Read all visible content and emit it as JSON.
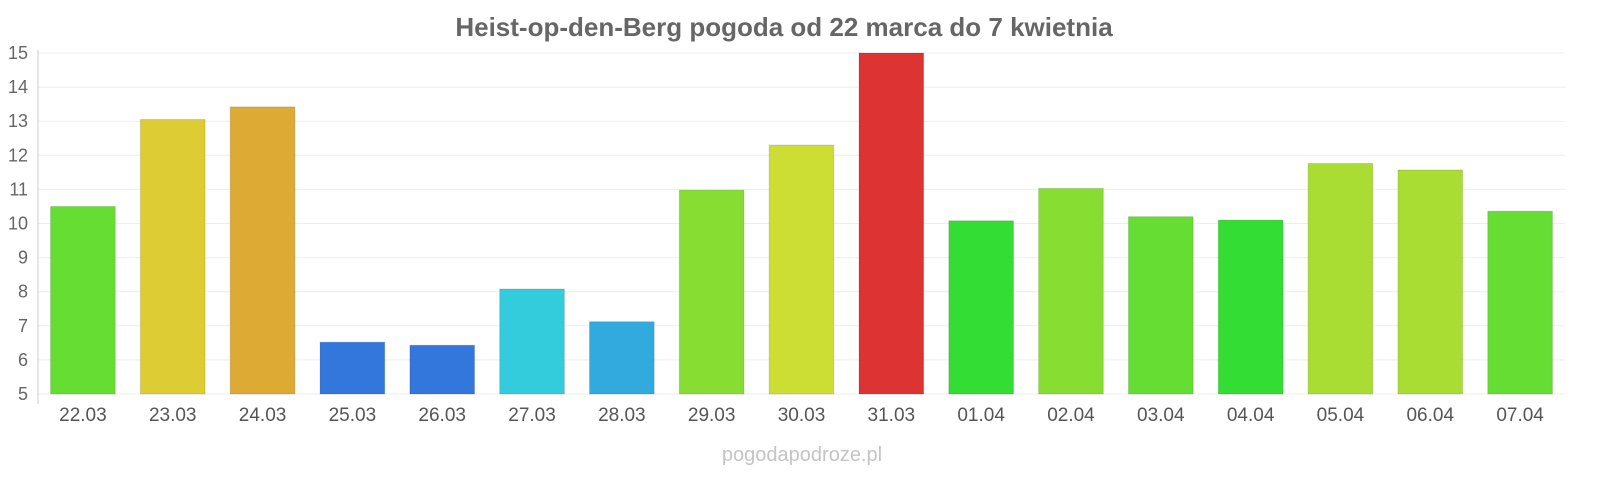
{
  "chart_data": {
    "type": "bar",
    "title": "Heist-op-den-Berg pogoda od 22 marca do 7 kwietnia",
    "xlabel": "",
    "ylabel": "",
    "categories": [
      "22.03",
      "23.03",
      "24.03",
      "25.03",
      "26.03",
      "27.03",
      "28.03",
      "29.03",
      "30.03",
      "31.03",
      "01.04",
      "02.04",
      "03.04",
      "04.04",
      "05.04",
      "06.04",
      "07.04"
    ],
    "values": [
      10.5,
      13.05,
      13.42,
      6.52,
      6.43,
      8.08,
      7.12,
      10.98,
      12.3,
      15.0,
      10.08,
      11.03,
      10.2,
      10.1,
      11.76,
      11.57,
      10.36
    ],
    "colors": [
      "#66dd33",
      "#ddcc33",
      "#ddaa33",
      "#3377dd",
      "#3377dd",
      "#33ccdd",
      "#33aadd",
      "#88dd33",
      "#ccdd33",
      "#dd3333",
      "#33dd33",
      "#88dd33",
      "#66dd33",
      "#33dd33",
      "#aadd33",
      "#aadd33",
      "#66dd33"
    ],
    "ylim": [
      5,
      15
    ],
    "yticks": [
      5,
      6,
      7,
      8,
      9,
      10,
      11,
      12,
      13,
      14,
      15
    ],
    "grid": true,
    "legend": "none"
  },
  "watermark": "pogodapodroze.pl"
}
